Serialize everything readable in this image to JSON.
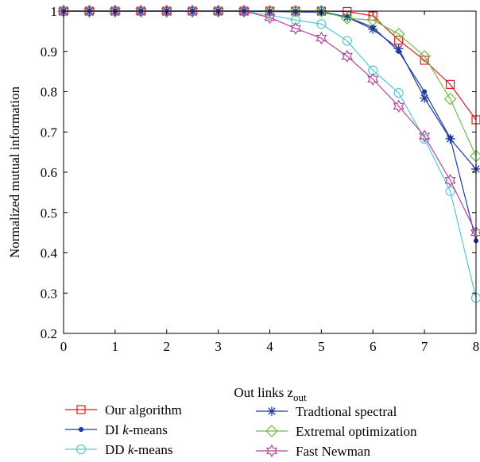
{
  "chart_data": {
    "type": "line",
    "title": "",
    "xlabel": "Out links z",
    "xlabel_sub": "out",
    "ylabel": "Normalized mutual information",
    "xlim": [
      0,
      8
    ],
    "ylim": [
      0.2,
      1.0
    ],
    "x_ticks": [
      "0",
      "1",
      "2",
      "3",
      "4",
      "5",
      "6",
      "7",
      "8"
    ],
    "y_ticks": [
      "0.2",
      "0.3",
      "0.4",
      "0.5",
      "0.6",
      "0.7",
      "0.8",
      "0.9",
      "1"
    ],
    "grid": false,
    "legend_position": "bottom",
    "x": [
      0,
      0.5,
      1,
      1.5,
      2,
      2.5,
      3,
      3.5,
      4,
      4.5,
      5,
      5.5,
      6,
      6.5,
      7,
      7.5,
      8
    ],
    "series": [
      {
        "name": "Our algorithm",
        "color": "#e8141b",
        "marker": "square",
        "values": [
          1,
          1,
          1,
          1,
          1,
          1,
          1,
          1,
          1,
          1,
          1,
          0.999,
          0.988,
          0.928,
          0.878,
          0.818,
          0.73
        ]
      },
      {
        "name": "DI k-means",
        "color": "#1f3aa0",
        "marker": "dot",
        "values": [
          1,
          1,
          1,
          1,
          1,
          1,
          1,
          1,
          0.999,
          0.998,
          0.997,
          0.985,
          0.96,
          0.9,
          0.8,
          0.685,
          0.43
        ]
      },
      {
        "name": "DD k-means",
        "color": "#55c8d2",
        "marker": "circle",
        "values": [
          1,
          1,
          1,
          1,
          1,
          1,
          1,
          1,
          0.99,
          0.978,
          0.968,
          0.926,
          0.853,
          0.797,
          0.683,
          0.553,
          0.288
        ]
      },
      {
        "name": "Tradtional spectral",
        "color": "#1f3aa0",
        "marker": "asterisk",
        "values": [
          1,
          1,
          1,
          1,
          1,
          1,
          1,
          1,
          1,
          1,
          1,
          0.985,
          0.955,
          0.907,
          0.784,
          0.683,
          0.608
        ]
      },
      {
        "name": "Extremal optimization",
        "color": "#6cbd45",
        "marker": "diamond",
        "values": [
          1,
          1,
          1,
          1,
          1,
          1,
          1,
          1,
          1,
          1,
          1,
          0.982,
          0.978,
          0.943,
          0.888,
          0.782,
          0.64
        ]
      },
      {
        "name": "Fast Newman",
        "color": "#b5459b",
        "marker": "star",
        "values": [
          1,
          1,
          1,
          1,
          1,
          1,
          1,
          1,
          0.984,
          0.957,
          0.933,
          0.888,
          0.831,
          0.764,
          0.69,
          0.58,
          0.45
        ]
      }
    ]
  },
  "legend": {
    "items": [
      {
        "text": "Our algorithm"
      },
      {
        "prefix": "DI ",
        "italic": "k",
        "suffix": "-means"
      },
      {
        "prefix": "DD ",
        "italic": "k",
        "suffix": "-means"
      },
      {
        "text": "Tradtional spectral"
      },
      {
        "text": "Extremal optimization"
      },
      {
        "text": "Fast Newman"
      }
    ]
  }
}
